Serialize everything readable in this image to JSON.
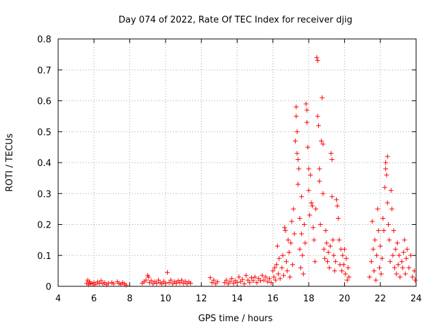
{
  "chart_data": {
    "type": "scatter",
    "title": "Day 074 of 2022, Rate Of TEC Index for receiver djig",
    "xlabel": "GPS time / hours",
    "ylabel": "ROTI / TECUs",
    "xlim": [
      4,
      24
    ],
    "ylim": [
      0,
      0.8
    ],
    "xticks": [
      "4",
      "6",
      "8",
      "10",
      "12",
      "14",
      "16",
      "18",
      "20",
      "22",
      "24"
    ],
    "yticks": [
      "0",
      "0.1",
      "0.2",
      "0.3",
      "0.4",
      "0.5",
      "0.6",
      "0.7",
      "0.8"
    ],
    "grid": true,
    "marker": "+",
    "color": "#ff0000",
    "series": [
      {
        "points": [
          [
            5.6,
            0.01
          ],
          [
            5.65,
            0.02
          ],
          [
            5.7,
            0.005
          ],
          [
            5.75,
            0.015
          ],
          [
            5.8,
            0.01
          ],
          [
            5.9,
            0.008
          ],
          [
            6.0,
            0.012
          ],
          [
            6.1,
            0.006
          ],
          [
            6.2,
            0.014
          ],
          [
            6.3,
            0.01
          ],
          [
            6.4,
            0.018
          ],
          [
            6.5,
            0.008
          ],
          [
            6.6,
            0.012
          ],
          [
            6.7,
            0.005
          ],
          [
            6.8,
            0.01
          ],
          [
            7.0,
            0.012
          ],
          [
            7.1,
            0.008
          ],
          [
            7.3,
            0.015
          ],
          [
            7.4,
            0.01
          ],
          [
            7.5,
            0.006
          ],
          [
            7.6,
            0.012
          ],
          [
            7.7,
            0.008
          ],
          [
            7.8,
            0.004
          ],
          [
            8.7,
            0.01
          ],
          [
            8.8,
            0.015
          ],
          [
            8.9,
            0.02
          ],
          [
            9.0,
            0.035
          ],
          [
            9.05,
            0.03
          ],
          [
            9.1,
            0.012
          ],
          [
            9.2,
            0.018
          ],
          [
            9.3,
            0.008
          ],
          [
            9.4,
            0.015
          ],
          [
            9.5,
            0.01
          ],
          [
            9.6,
            0.02
          ],
          [
            9.7,
            0.012
          ],
          [
            9.8,
            0.008
          ],
          [
            9.9,
            0.016
          ],
          [
            10.0,
            0.01
          ],
          [
            10.1,
            0.045
          ],
          [
            10.2,
            0.012
          ],
          [
            10.3,
            0.02
          ],
          [
            10.4,
            0.008
          ],
          [
            10.5,
            0.015
          ],
          [
            10.6,
            0.01
          ],
          [
            10.7,
            0.018
          ],
          [
            10.8,
            0.012
          ],
          [
            10.9,
            0.02
          ],
          [
            11.0,
            0.01
          ],
          [
            11.1,
            0.016
          ],
          [
            11.2,
            0.008
          ],
          [
            11.3,
            0.014
          ],
          [
            11.4,
            0.01
          ],
          [
            12.5,
            0.028
          ],
          [
            12.6,
            0.012
          ],
          [
            12.7,
            0.02
          ],
          [
            12.8,
            0.008
          ],
          [
            12.9,
            0.015
          ],
          [
            13.3,
            0.012
          ],
          [
            13.4,
            0.02
          ],
          [
            13.5,
            0.008
          ],
          [
            13.6,
            0.015
          ],
          [
            13.7,
            0.025
          ],
          [
            13.8,
            0.01
          ],
          [
            13.9,
            0.018
          ],
          [
            14.0,
            0.012
          ],
          [
            14.1,
            0.03
          ],
          [
            14.2,
            0.015
          ],
          [
            14.3,
            0.022
          ],
          [
            14.4,
            0.008
          ],
          [
            14.5,
            0.035
          ],
          [
            14.6,
            0.02
          ],
          [
            14.7,
            0.012
          ],
          [
            14.8,
            0.028
          ],
          [
            14.9,
            0.018
          ],
          [
            15.0,
            0.03
          ],
          [
            15.1,
            0.012
          ],
          [
            15.2,
            0.025
          ],
          [
            15.3,
            0.018
          ],
          [
            15.4,
            0.035
          ],
          [
            15.5,
            0.02
          ],
          [
            15.6,
            0.03
          ],
          [
            15.7,
            0.015
          ],
          [
            15.8,
            0.025
          ],
          [
            15.9,
            0.012
          ],
          [
            16.0,
            0.05
          ],
          [
            16.05,
            0.03
          ],
          [
            16.1,
            0.06
          ],
          [
            16.15,
            0.02
          ],
          [
            16.2,
            0.07
          ],
          [
            16.25,
            0.13
          ],
          [
            16.3,
            0.04
          ],
          [
            16.35,
            0.09
          ],
          [
            16.4,
            0.025
          ],
          [
            16.5,
            0.06
          ],
          [
            16.55,
            0.1
          ],
          [
            16.6,
            0.035
          ],
          [
            16.65,
            0.19
          ],
          [
            16.7,
            0.18
          ],
          [
            16.75,
            0.08
          ],
          [
            16.8,
            0.05
          ],
          [
            16.85,
            0.15
          ],
          [
            16.9,
            0.11
          ],
          [
            16.95,
            0.03
          ],
          [
            17.0,
            0.14
          ],
          [
            17.05,
            0.21
          ],
          [
            17.1,
            0.07
          ],
          [
            17.15,
            0.25
          ],
          [
            17.2,
            0.17
          ],
          [
            17.25,
            0.47
          ],
          [
            17.3,
            0.58
          ],
          [
            17.3,
            0.55
          ],
          [
            17.35,
            0.5
          ],
          [
            17.35,
            0.43
          ],
          [
            17.4,
            0.41
          ],
          [
            17.4,
            0.33
          ],
          [
            17.45,
            0.38
          ],
          [
            17.5,
            0.22
          ],
          [
            17.5,
            0.12
          ],
          [
            17.55,
            0.06
          ],
          [
            17.6,
            0.29
          ],
          [
            17.6,
            0.17
          ],
          [
            17.65,
            0.1
          ],
          [
            17.7,
            0.04
          ],
          [
            17.75,
            0.2
          ],
          [
            17.8,
            0.14
          ],
          [
            17.85,
            0.59
          ],
          [
            17.9,
            0.57
          ],
          [
            17.9,
            0.53
          ],
          [
            17.95,
            0.45
          ],
          [
            18.0,
            0.38
          ],
          [
            18.0,
            0.31
          ],
          [
            18.05,
            0.23
          ],
          [
            18.1,
            0.36
          ],
          [
            18.15,
            0.27
          ],
          [
            18.2,
            0.26
          ],
          [
            18.25,
            0.19
          ],
          [
            18.3,
            0.15
          ],
          [
            18.35,
            0.08
          ],
          [
            18.4,
            0.25
          ],
          [
            18.45,
            0.74
          ],
          [
            18.5,
            0.73
          ],
          [
            18.5,
            0.55
          ],
          [
            18.55,
            0.52
          ],
          [
            18.6,
            0.38
          ],
          [
            18.6,
            0.34
          ],
          [
            18.65,
            0.2
          ],
          [
            18.7,
            0.47
          ],
          [
            18.75,
            0.61
          ],
          [
            18.8,
            0.46
          ],
          [
            18.8,
            0.3
          ],
          [
            18.85,
            0.12
          ],
          [
            18.9,
            0.09
          ],
          [
            18.95,
            0.18
          ],
          [
            19.0,
            0.14
          ],
          [
            19.05,
            0.08
          ],
          [
            19.1,
            0.11
          ],
          [
            19.15,
            0.06
          ],
          [
            19.2,
            0.13
          ],
          [
            19.25,
            0.43
          ],
          [
            19.3,
            0.41
          ],
          [
            19.3,
            0.29
          ],
          [
            19.35,
            0.15
          ],
          [
            19.4,
            0.1
          ],
          [
            19.45,
            0.05
          ],
          [
            19.5,
            0.08
          ],
          [
            19.55,
            0.28
          ],
          [
            19.6,
            0.26
          ],
          [
            19.65,
            0.22
          ],
          [
            19.7,
            0.15
          ],
          [
            19.75,
            0.07
          ],
          [
            19.8,
            0.12
          ],
          [
            19.85,
            0.05
          ],
          [
            19.9,
            0.1
          ],
          [
            19.95,
            0.07
          ],
          [
            20.0,
            0.12
          ],
          [
            20.05,
            0.04
          ],
          [
            20.1,
            0.09
          ],
          [
            20.15,
            0.02
          ],
          [
            20.2,
            0.06
          ],
          [
            20.25,
            0.03
          ],
          [
            21.4,
            0.03
          ],
          [
            21.5,
            0.08
          ],
          [
            21.55,
            0.21
          ],
          [
            21.6,
            0.12
          ],
          [
            21.65,
            0.05
          ],
          [
            21.7,
            0.15
          ],
          [
            21.75,
            0.02
          ],
          [
            21.8,
            0.1
          ],
          [
            21.85,
            0.25
          ],
          [
            21.9,
            0.18
          ],
          [
            21.95,
            0.06
          ],
          [
            22.0,
            0.13
          ],
          [
            22.05,
            0.04
          ],
          [
            22.1,
            0.09
          ],
          [
            22.15,
            0.22
          ],
          [
            22.2,
            0.18
          ],
          [
            22.25,
            0.32
          ],
          [
            22.3,
            0.4
          ],
          [
            22.3,
            0.38
          ],
          [
            22.35,
            0.36
          ],
          [
            22.4,
            0.42
          ],
          [
            22.4,
            0.27
          ],
          [
            22.45,
            0.2
          ],
          [
            22.5,
            0.15
          ],
          [
            22.55,
            0.08
          ],
          [
            22.6,
            0.31
          ],
          [
            22.65,
            0.25
          ],
          [
            22.7,
            0.1
          ],
          [
            22.75,
            0.18
          ],
          [
            22.8,
            0.06
          ],
          [
            22.85,
            0.12
          ],
          [
            22.9,
            0.04
          ],
          [
            22.95,
            0.14
          ],
          [
            23.0,
            0.07
          ],
          [
            23.05,
            0.1
          ],
          [
            23.1,
            0.03
          ],
          [
            23.2,
            0.08
          ],
          [
            23.25,
            0.06
          ],
          [
            23.3,
            0.11
          ],
          [
            23.35,
            0.15
          ],
          [
            23.4,
            0.04
          ],
          [
            23.45,
            0.09
          ],
          [
            23.5,
            0.12
          ],
          [
            23.6,
            0.06
          ],
          [
            23.7,
            0.1
          ],
          [
            23.8,
            0.03
          ],
          [
            23.9,
            0.05
          ],
          [
            23.95,
            0.02
          ]
        ]
      }
    ]
  }
}
